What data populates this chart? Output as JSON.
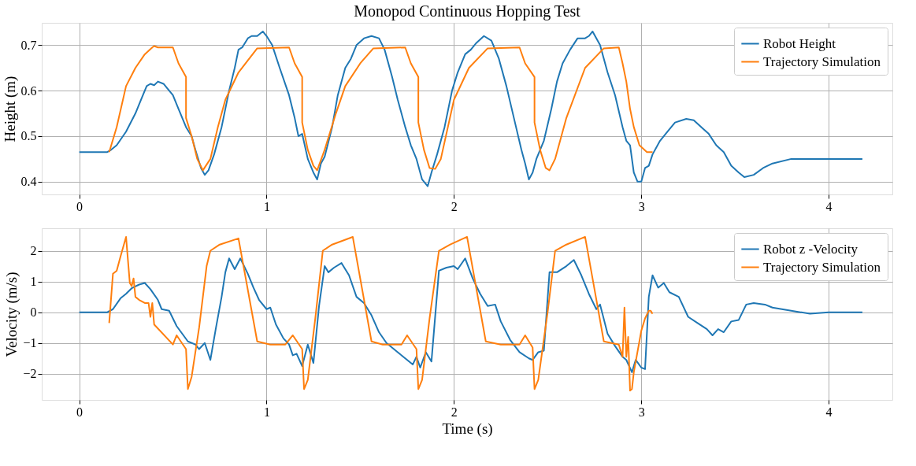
{
  "chart_data": [
    {
      "type": "line",
      "title": "Monopod Continuous Hopping Test",
      "ylabel": "Height (m)",
      "xlim": [
        -0.2,
        4.34
      ],
      "xticks": [
        0,
        1,
        2,
        3,
        4
      ],
      "ylim": [
        0.372,
        0.749
      ],
      "yticks": [
        0.4,
        0.5,
        0.6,
        0.7
      ],
      "grid": true,
      "legend": "top right",
      "line_style": "solid",
      "marker": "none",
      "series": [
        {
          "name": "Robot Height",
          "color": "#1f77b4",
          "x": [
            0,
            0.15,
            0.17,
            0.2,
            0.25,
            0.3,
            0.33,
            0.36,
            0.38,
            0.4,
            0.42,
            0.45,
            0.5,
            0.53,
            0.57,
            0.6,
            0.62,
            0.65,
            0.67,
            0.69,
            0.72,
            0.76,
            0.8,
            0.83,
            0.85,
            0.87,
            0.9,
            0.92,
            0.95,
            0.98,
            1.0,
            1.03,
            1.07,
            1.12,
            1.15,
            1.17,
            1.19,
            1.22,
            1.25,
            1.27,
            1.29,
            1.31,
            1.35,
            1.38,
            1.42,
            1.45,
            1.48,
            1.52,
            1.56,
            1.6,
            1.63,
            1.67,
            1.7,
            1.74,
            1.77,
            1.8,
            1.83,
            1.86,
            1.88,
            1.91,
            1.95,
            1.99,
            2.02,
            2.06,
            2.09,
            2.12,
            2.16,
            2.2,
            2.24,
            2.28,
            2.32,
            2.36,
            2.38,
            2.4,
            2.42,
            2.44,
            2.48,
            2.52,
            2.55,
            2.58,
            2.62,
            2.66,
            2.7,
            2.72,
            2.74,
            2.78,
            2.82,
            2.86,
            2.9,
            2.92,
            2.94,
            2.96,
            2.98,
            3.0,
            3.02,
            3.04,
            3.06,
            3.1,
            3.14,
            3.18,
            3.24,
            3.28,
            3.32,
            3.36,
            3.4,
            3.44,
            3.48,
            3.52,
            3.55,
            3.6,
            3.65,
            3.7,
            3.8,
            3.9,
            4.0,
            4.18
          ],
          "values": [
            0.465,
            0.465,
            0.47,
            0.48,
            0.51,
            0.55,
            0.58,
            0.61,
            0.615,
            0.612,
            0.62,
            0.615,
            0.59,
            0.56,
            0.52,
            0.5,
            0.47,
            0.43,
            0.415,
            0.425,
            0.46,
            0.52,
            0.6,
            0.65,
            0.69,
            0.695,
            0.715,
            0.72,
            0.72,
            0.73,
            0.72,
            0.7,
            0.65,
            0.59,
            0.54,
            0.5,
            0.505,
            0.45,
            0.42,
            0.405,
            0.44,
            0.455,
            0.52,
            0.59,
            0.65,
            0.67,
            0.7,
            0.715,
            0.72,
            0.715,
            0.69,
            0.63,
            0.58,
            0.52,
            0.48,
            0.45,
            0.405,
            0.39,
            0.42,
            0.46,
            0.52,
            0.6,
            0.64,
            0.68,
            0.69,
            0.705,
            0.72,
            0.71,
            0.67,
            0.61,
            0.54,
            0.47,
            0.44,
            0.405,
            0.42,
            0.45,
            0.49,
            0.56,
            0.62,
            0.66,
            0.69,
            0.715,
            0.715,
            0.72,
            0.73,
            0.7,
            0.64,
            0.59,
            0.52,
            0.49,
            0.48,
            0.42,
            0.4,
            0.4,
            0.43,
            0.435,
            0.46,
            0.49,
            0.51,
            0.53,
            0.538,
            0.535,
            0.52,
            0.505,
            0.48,
            0.465,
            0.435,
            0.42,
            0.41,
            0.415,
            0.43,
            0.44,
            0.45,
            0.45,
            0.45,
            0.45
          ]
        },
        {
          "name": "Trajectory Simulation",
          "color": "#ff7f0e",
          "x": [
            0.16,
            0.2,
            0.25,
            0.3,
            0.35,
            0.39,
            0.4,
            0.42,
            0.5,
            0.53,
            0.57,
            0.57,
            0.6,
            0.63,
            0.66,
            0.7,
            0.74,
            0.78,
            0.85,
            0.95,
            1.12,
            1.15,
            1.19,
            1.19,
            1.22,
            1.25,
            1.27,
            1.31,
            1.37,
            1.42,
            1.5,
            1.57,
            1.74,
            1.77,
            1.81,
            1.81,
            1.84,
            1.87,
            1.9,
            1.93,
            2.0,
            2.08,
            2.18,
            2.35,
            2.38,
            2.43,
            2.43,
            2.46,
            2.49,
            2.51,
            2.54,
            2.6,
            2.7,
            2.8,
            2.88,
            2.9,
            2.92,
            2.94,
            2.96,
            2.99,
            3.03,
            3.06
          ],
          "values": [
            0.465,
            0.52,
            0.61,
            0.65,
            0.68,
            0.695,
            0.698,
            0.695,
            0.695,
            0.66,
            0.63,
            0.54,
            0.5,
            0.45,
            0.425,
            0.45,
            0.52,
            0.58,
            0.64,
            0.693,
            0.695,
            0.66,
            0.63,
            0.53,
            0.47,
            0.435,
            0.425,
            0.47,
            0.55,
            0.61,
            0.66,
            0.693,
            0.695,
            0.66,
            0.63,
            0.53,
            0.47,
            0.43,
            0.428,
            0.45,
            0.58,
            0.65,
            0.693,
            0.695,
            0.66,
            0.63,
            0.53,
            0.47,
            0.43,
            0.425,
            0.45,
            0.54,
            0.65,
            0.693,
            0.695,
            0.66,
            0.62,
            0.56,
            0.52,
            0.48,
            0.465,
            0.465
          ]
        }
      ]
    },
    {
      "type": "line",
      "xlabel": "Time (s)",
      "ylabel": "Velocity (m/s)",
      "xlim": [
        -0.2,
        4.34
      ],
      "xticks": [
        0,
        1,
        2,
        3,
        4
      ],
      "ylim": [
        -2.85,
        2.73
      ],
      "yticks": [
        -2,
        -1,
        0,
        1,
        2
      ],
      "grid": true,
      "legend": "top right",
      "line_style": "solid",
      "marker": "none",
      "series": [
        {
          "name": "Robot z -Velocity",
          "color": "#1f77b4",
          "x": [
            0,
            0.15,
            0.18,
            0.22,
            0.25,
            0.28,
            0.32,
            0.35,
            0.38,
            0.42,
            0.44,
            0.48,
            0.52,
            0.55,
            0.58,
            0.62,
            0.64,
            0.67,
            0.7,
            0.73,
            0.76,
            0.78,
            0.8,
            0.83,
            0.86,
            0.9,
            0.93,
            0.96,
            1.0,
            1.02,
            1.05,
            1.09,
            1.12,
            1.14,
            1.16,
            1.19,
            1.22,
            1.25,
            1.28,
            1.31,
            1.33,
            1.36,
            1.4,
            1.44,
            1.48,
            1.52,
            1.56,
            1.6,
            1.64,
            1.7,
            1.74,
            1.78,
            1.8,
            1.82,
            1.85,
            1.88,
            1.92,
            1.96,
            2.0,
            2.02,
            2.06,
            2.1,
            2.14,
            2.18,
            2.22,
            2.25,
            2.3,
            2.35,
            2.4,
            2.42,
            2.45,
            2.48,
            2.51,
            2.55,
            2.6,
            2.64,
            2.68,
            2.72,
            2.76,
            2.78,
            2.82,
            2.86,
            2.9,
            2.92,
            2.95,
            2.97,
            3.0,
            3.02,
            3.04,
            3.06,
            3.09,
            3.12,
            3.15,
            3.2,
            3.25,
            3.3,
            3.35,
            3.38,
            3.41,
            3.44,
            3.48,
            3.52,
            3.56,
            3.6,
            3.66,
            3.7,
            3.8,
            3.9,
            4.0,
            4.18
          ],
          "values": [
            0,
            0,
            0.1,
            0.45,
            0.6,
            0.78,
            0.9,
            0.95,
            0.75,
            0.4,
            0.1,
            0.05,
            -0.45,
            -0.7,
            -0.95,
            -1.05,
            -1.2,
            -1.0,
            -1.55,
            -0.5,
            0.5,
            1.3,
            1.75,
            1.4,
            1.75,
            1.25,
            0.8,
            0.4,
            0.1,
            0.15,
            -0.4,
            -0.85,
            -1.05,
            -1.4,
            -1.35,
            -1.75,
            -1.05,
            -1.65,
            0.2,
            1.5,
            1.3,
            1.45,
            1.6,
            1.2,
            0.5,
            0.3,
            -0.1,
            -0.65,
            -1.0,
            -1.3,
            -1.5,
            -1.7,
            -1.45,
            -1.8,
            -1.3,
            -1.6,
            1.35,
            1.45,
            1.5,
            1.4,
            1.75,
            1.1,
            0.6,
            0.2,
            0.25,
            -0.3,
            -0.9,
            -1.3,
            -1.5,
            -1.55,
            -1.3,
            -1.25,
            1.3,
            1.3,
            1.5,
            1.7,
            1.2,
            0.6,
            0.1,
            0.25,
            -0.7,
            -1.1,
            -1.45,
            -1.55,
            -1.95,
            -1.55,
            -1.8,
            -1.85,
            0.5,
            1.2,
            0.8,
            0.95,
            0.65,
            0.5,
            -0.15,
            -0.35,
            -0.55,
            -0.75,
            -0.55,
            -0.65,
            -0.3,
            -0.25,
            0.25,
            0.3,
            0.25,
            0.15,
            0.05,
            -0.05,
            0,
            0
          ]
        },
        {
          "name": "Trajectory Simulation",
          "color": "#ff7f0e",
          "x": [
            0.16,
            0.18,
            0.2,
            0.22,
            0.25,
            0.27,
            0.28,
            0.29,
            0.3,
            0.32,
            0.35,
            0.37,
            0.38,
            0.39,
            0.4,
            0.5,
            0.52,
            0.57,
            0.58,
            0.6,
            0.64,
            0.68,
            0.7,
            0.75,
            0.85,
            0.95,
            1.02,
            1.1,
            1.14,
            1.19,
            1.2,
            1.22,
            1.26,
            1.3,
            1.35,
            1.46,
            1.56,
            1.62,
            1.72,
            1.75,
            1.8,
            1.81,
            1.83,
            1.87,
            1.92,
            1.98,
            2.07,
            2.17,
            2.25,
            2.35,
            2.38,
            2.42,
            2.43,
            2.45,
            2.5,
            2.54,
            2.6,
            2.7,
            2.8,
            2.88,
            2.9,
            2.91,
            2.92,
            2.93,
            2.94,
            2.95,
            2.96,
            3.0,
            3.02,
            3.04,
            3.05,
            3.06
          ],
          "values": [
            -0.35,
            1.25,
            1.35,
            1.8,
            2.45,
            0.95,
            0.85,
            1.1,
            0.5,
            0.4,
            0.3,
            0.3,
            -0.15,
            0.3,
            -0.4,
            -1.05,
            -0.75,
            -1.2,
            -2.5,
            -2.1,
            -0.5,
            1.5,
            2.0,
            2.2,
            2.4,
            -0.95,
            -1.05,
            -1.05,
            -0.75,
            -1.2,
            -2.5,
            -2.2,
            -0.2,
            2.0,
            2.2,
            2.45,
            -0.95,
            -1.05,
            -1.05,
            -0.75,
            -1.2,
            -2.5,
            -2.2,
            -0.2,
            2.0,
            2.2,
            2.45,
            -0.95,
            -1.05,
            -1.05,
            -0.75,
            -1.15,
            -2.5,
            -2.2,
            0.0,
            2.0,
            2.2,
            2.45,
            -0.95,
            -1.05,
            -1.45,
            0.15,
            -1.45,
            -0.8,
            -2.55,
            -2.5,
            -1.95,
            -0.6,
            -0.2,
            0.05,
            0.05,
            -0.05
          ]
        }
      ]
    }
  ]
}
